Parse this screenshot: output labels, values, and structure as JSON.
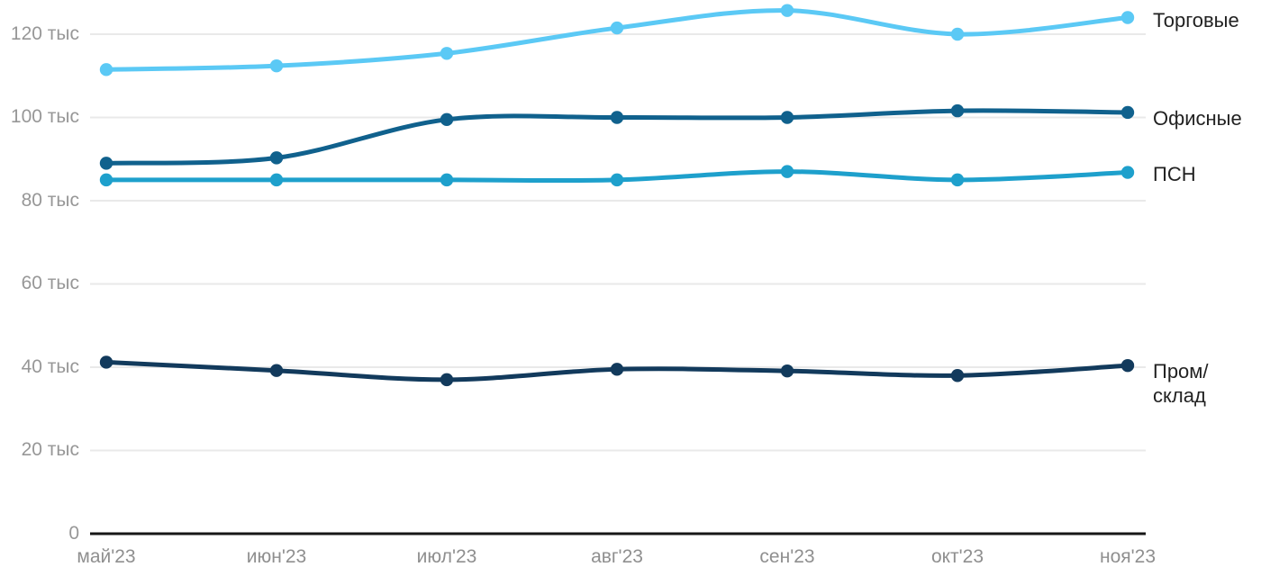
{
  "chart_data": {
    "type": "line",
    "smooth": true,
    "unit": "тыс",
    "categories": [
      "май'23",
      "июн'23",
      "июл'23",
      "авг'23",
      "сен'23",
      "окт'23",
      "ноя'23"
    ],
    "series": [
      {
        "name": "Торговые",
        "color": "#5BC9F5",
        "values": [
          111.5,
          112.4,
          115.4,
          121.5,
          125.7,
          120.0,
          124.0
        ]
      },
      {
        "name": "Офисные",
        "color": "#10618D",
        "values": [
          89.0,
          90.3,
          99.5,
          100.0,
          100.0,
          101.6,
          101.2
        ]
      },
      {
        "name": "ПСН",
        "color": "#1EA0CC",
        "values": [
          85.0,
          85.0,
          85.0,
          85.0,
          87.0,
          85.0,
          86.8
        ]
      },
      {
        "name": "Пром/склад",
        "color": "#123A5C",
        "values": [
          41.2,
          39.2,
          37.0,
          39.5,
          39.1,
          38.0,
          40.4
        ]
      }
    ],
    "y_ticks": [
      {
        "value": 0,
        "label": "0"
      },
      {
        "value": 20,
        "label": "20 тыс"
      },
      {
        "value": 40,
        "label": "40 тыс"
      },
      {
        "value": 60,
        "label": "60 тыс"
      },
      {
        "value": 80,
        "label": "80 тыс"
      },
      {
        "value": 100,
        "label": "100 тыс"
      },
      {
        "value": 120,
        "label": "120 тыс"
      }
    ],
    "ylim": [
      0,
      128
    ],
    "grid": "horizontal",
    "grid_color": "#e9e9e9",
    "axis_color": "#161616",
    "tick_label_color": "#979797",
    "series_label_color": "#222222",
    "legend_position": "right-of-line-end"
  }
}
